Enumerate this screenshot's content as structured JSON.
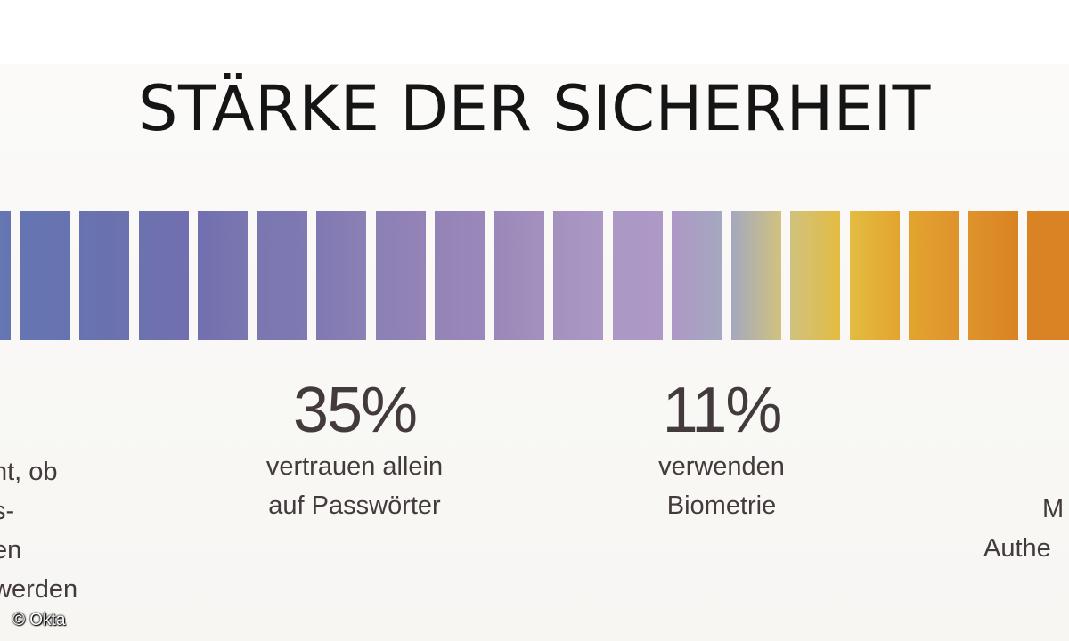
{
  "title": "STÄRKE DER SICHERHEIT",
  "bars": {
    "colors": [
      "#6678b4",
      "#6575b2",
      "#6773b0",
      "#6c72ad",
      "#716fb0",
      "#7a77b1",
      "#8079b2",
      "#8c80b5",
      "#9483b6",
      "#9a88ba",
      "#a591be",
      "#ab98c4",
      "#ae98c6",
      "#a5a8c0",
      "#d0c27e",
      "#e3bc41",
      "#e3a42f",
      "#df932b",
      "#d98324"
    ],
    "stops": [
      null,
      null,
      null,
      null,
      null,
      null,
      null,
      null,
      null,
      null,
      null,
      null,
      null,
      null,
      null,
      null,
      null,
      null,
      null
    ]
  },
  "stats": [
    {
      "percent": "35%",
      "line1": "vertrauen allein",
      "line2": "auf Passwörter"
    },
    {
      "percent": "11%",
      "line1": "verwenden",
      "line2": "Biometrie"
    }
  ],
  "left_partial": [
    "nt, ob",
    "s-",
    "en",
    "werden"
  ],
  "right_partial": [
    "M",
    "Authe"
  ],
  "copyright": "© Okta"
}
